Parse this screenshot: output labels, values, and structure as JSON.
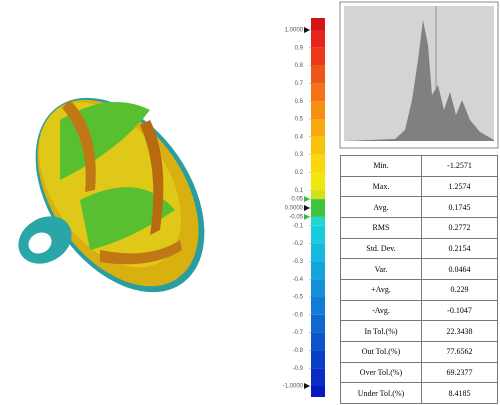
{
  "scale": {
    "ticks": [
      {
        "value": 1,
        "label": "1.0000"
      },
      0.9,
      0.8,
      0.7,
      0.6,
      0.5,
      0.4,
      0.3,
      0.2,
      0.1,
      0.05,
      {
        "value": 0,
        "label": "0.0000"
      },
      -0.05,
      -0.1,
      -0.2,
      -0.3,
      -0.4,
      -0.5,
      -0.6,
      -0.7,
      -0.8,
      -0.9,
      {
        "value": -1,
        "label": "-1.0000"
      }
    ],
    "band_colors": [
      "#e6231c",
      "#ea3a1a",
      "#ee5518",
      "#f27215",
      "#f48f12",
      "#f7aa0f",
      "#f9c20c",
      "#fbd80a",
      "#f0e60a",
      "#d2e016",
      "#3cc43c",
      "#3cc43c",
      "#22d6d2",
      "#18cce0",
      "#16b8e0",
      "#14a4dc",
      "#1290d8",
      "#107cd4",
      "#0e68d0",
      "#0c54cc",
      "#0a40c8",
      "#082cc4"
    ],
    "over_color": "#d41414",
    "under_color": "#0618c0"
  },
  "stats": {
    "rows": [
      [
        "Min.",
        "-1.2571"
      ],
      [
        "Max.",
        "1.2574"
      ],
      [
        "Avg.",
        "0.1745"
      ],
      [
        "RMS",
        "0.2772"
      ],
      [
        "Std. Dev.",
        "0.2154"
      ],
      [
        "Var.",
        "0.0464"
      ],
      [
        "+Avg.",
        "0.229"
      ],
      [
        "-Avg.",
        "-0.1047"
      ],
      [
        "In Tol.(%)",
        "22.3438"
      ],
      [
        "Out Tol.(%)",
        "77.6562"
      ],
      [
        "Over Tol.(%)",
        "69.2377"
      ],
      [
        "Under Tol.(%)",
        "8.4185"
      ]
    ]
  }
}
